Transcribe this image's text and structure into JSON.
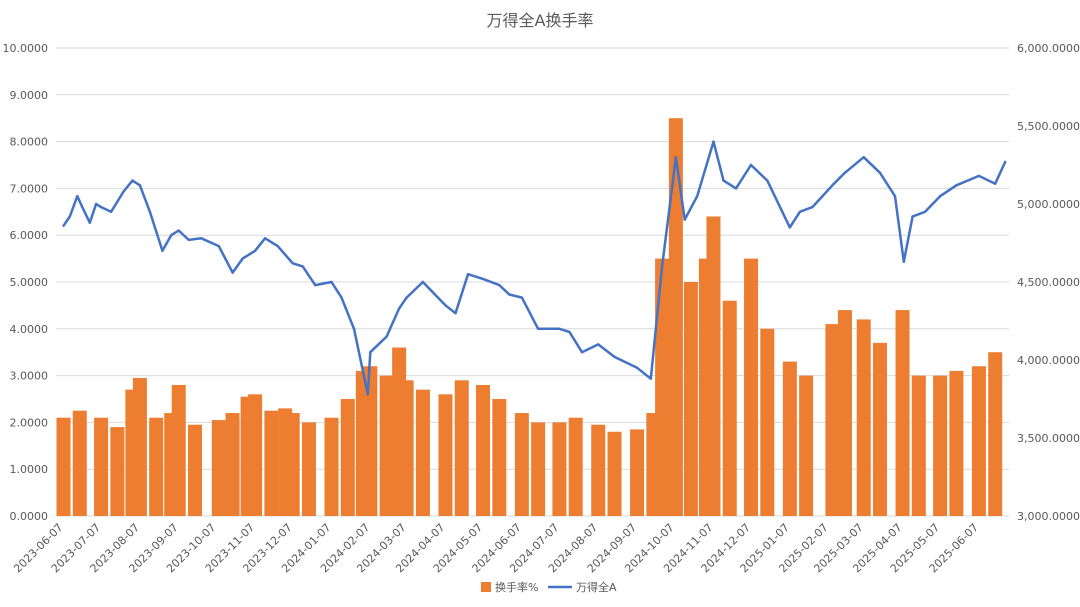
{
  "chart_data": {
    "type": "bar+line",
    "title": "万得全A换手率",
    "left_axis": {
      "min": 0,
      "max": 10,
      "step": 1,
      "tick_labels": [
        "0.0000",
        "1.0000",
        "2.0000",
        "3.0000",
        "4.0000",
        "5.0000",
        "6.0000",
        "7.0000",
        "8.0000",
        "9.0000",
        "10.0000"
      ]
    },
    "right_axis": {
      "min": 3000,
      "max": 6000,
      "step": 500,
      "tick_labels": [
        "3,000.0000",
        "3,500.0000",
        "4,000.0000",
        "4,500.0000",
        "5,000.0000",
        "5,500.0000",
        "6,000.0000"
      ]
    },
    "x_tick_labels": [
      "2023-06-07",
      "2023-07-07",
      "2023-08-07",
      "2023-09-07",
      "2023-10-07",
      "2023-11-07",
      "2023-12-07",
      "2024-01-07",
      "2024-02-07",
      "2024-03-07",
      "2024-04-07",
      "2024-05-07",
      "2024-06-07",
      "2024-07-07",
      "2024-08-07",
      "2024-09-07",
      "2024-10-07",
      "2024-11-07",
      "2024-12-07",
      "2025-01-07",
      "2025-02-07",
      "2025-03-07",
      "2025-04-07",
      "2025-05-07",
      "2025-06-07"
    ],
    "grid": true,
    "legend_position": "bottom",
    "series": [
      {
        "name": "换手率%",
        "type": "bar",
        "axis": "left",
        "color": "#ED7D31",
        "points": [
          [
            "2023-06-07",
            2.1
          ],
          [
            "2023-06-20",
            2.25
          ],
          [
            "2023-07-07",
            2.1
          ],
          [
            "2023-07-20",
            1.9
          ],
          [
            "2023-08-01",
            2.7
          ],
          [
            "2023-08-07",
            2.95
          ],
          [
            "2023-08-20",
            2.1
          ],
          [
            "2023-09-01",
            2.2
          ],
          [
            "2023-09-07",
            2.8
          ],
          [
            "2023-09-20",
            1.95
          ],
          [
            "2023-10-09",
            2.05
          ],
          [
            "2023-10-20",
            2.2
          ],
          [
            "2023-11-01",
            2.55
          ],
          [
            "2023-11-07",
            2.6
          ],
          [
            "2023-11-20",
            2.25
          ],
          [
            "2023-12-01",
            2.3
          ],
          [
            "2023-12-07",
            2.2
          ],
          [
            "2023-12-20",
            2.0
          ],
          [
            "2024-01-07",
            2.1
          ],
          [
            "2024-01-20",
            2.5
          ],
          [
            "2024-02-01",
            3.1
          ],
          [
            "2024-02-07",
            3.2
          ],
          [
            "2024-02-20",
            3.0
          ],
          [
            "2024-03-01",
            3.6
          ],
          [
            "2024-03-07",
            2.9
          ],
          [
            "2024-03-20",
            2.7
          ],
          [
            "2024-04-07",
            2.6
          ],
          [
            "2024-04-20",
            2.9
          ],
          [
            "2024-05-07",
            2.8
          ],
          [
            "2024-05-20",
            2.5
          ],
          [
            "2024-06-07",
            2.2
          ],
          [
            "2024-06-20",
            2.0
          ],
          [
            "2024-07-07",
            2.0
          ],
          [
            "2024-07-20",
            2.1
          ],
          [
            "2024-08-07",
            1.95
          ],
          [
            "2024-08-20",
            1.8
          ],
          [
            "2024-09-07",
            1.85
          ],
          [
            "2024-09-20",
            2.2
          ],
          [
            "2024-09-27",
            5.5
          ],
          [
            "2024-10-08",
            8.5
          ],
          [
            "2024-10-20",
            5.0
          ],
          [
            "2024-11-01",
            5.5
          ],
          [
            "2024-11-07",
            6.4
          ],
          [
            "2024-11-20",
            4.6
          ],
          [
            "2024-12-07",
            5.5
          ],
          [
            "2024-12-20",
            4.0
          ],
          [
            "2025-01-07",
            3.3
          ],
          [
            "2025-01-20",
            3.0
          ],
          [
            "2025-02-10",
            4.1
          ],
          [
            "2025-02-20",
            4.4
          ],
          [
            "2025-03-07",
            4.2
          ],
          [
            "2025-03-20",
            3.7
          ],
          [
            "2025-04-07",
            4.4
          ],
          [
            "2025-04-20",
            3.0
          ],
          [
            "2025-05-07",
            3.0
          ],
          [
            "2025-05-20",
            3.1
          ],
          [
            "2025-06-07",
            3.2
          ],
          [
            "2025-06-20",
            3.5
          ]
        ]
      },
      {
        "name": "万得全A",
        "type": "line",
        "axis": "right",
        "color": "#4472C4",
        "points": [
          [
            "2023-06-07",
            4860
          ],
          [
            "2023-06-12",
            4920
          ],
          [
            "2023-06-18",
            5050
          ],
          [
            "2023-06-22",
            4980
          ],
          [
            "2023-06-28",
            4880
          ],
          [
            "2023-07-03",
            5000
          ],
          [
            "2023-07-07",
            4980
          ],
          [
            "2023-07-15",
            4950
          ],
          [
            "2023-07-25",
            5080
          ],
          [
            "2023-08-01",
            5150
          ],
          [
            "2023-08-07",
            5120
          ],
          [
            "2023-08-15",
            4950
          ],
          [
            "2023-08-25",
            4700
          ],
          [
            "2023-09-01",
            4800
          ],
          [
            "2023-09-07",
            4830
          ],
          [
            "2023-09-15",
            4770
          ],
          [
            "2023-09-25",
            4780
          ],
          [
            "2023-10-09",
            4730
          ],
          [
            "2023-10-20",
            4560
          ],
          [
            "2023-10-28",
            4650
          ],
          [
            "2023-11-07",
            4700
          ],
          [
            "2023-11-15",
            4780
          ],
          [
            "2023-11-25",
            4730
          ],
          [
            "2023-12-07",
            4620
          ],
          [
            "2023-12-15",
            4600
          ],
          [
            "2023-12-25",
            4480
          ],
          [
            "2024-01-07",
            4500
          ],
          [
            "2024-01-15",
            4400
          ],
          [
            "2024-01-25",
            4200
          ],
          [
            "2024-02-05",
            3780
          ],
          [
            "2024-02-07",
            4050
          ],
          [
            "2024-02-20",
            4150
          ],
          [
            "2024-03-01",
            4330
          ],
          [
            "2024-03-07",
            4400
          ],
          [
            "2024-03-20",
            4500
          ],
          [
            "2024-04-01",
            4400
          ],
          [
            "2024-04-07",
            4350
          ],
          [
            "2024-04-15",
            4300
          ],
          [
            "2024-04-25",
            4550
          ],
          [
            "2024-05-07",
            4520
          ],
          [
            "2024-05-20",
            4480
          ],
          [
            "2024-05-28",
            4420
          ],
          [
            "2024-06-07",
            4400
          ],
          [
            "2024-06-20",
            4200
          ],
          [
            "2024-07-07",
            4200
          ],
          [
            "2024-07-15",
            4180
          ],
          [
            "2024-07-25",
            4050
          ],
          [
            "2024-08-07",
            4100
          ],
          [
            "2024-08-20",
            4020
          ],
          [
            "2024-09-07",
            3950
          ],
          [
            "2024-09-18",
            3880
          ],
          [
            "2024-09-27",
            4600
          ],
          [
            "2024-10-08",
            5300
          ],
          [
            "2024-10-15",
            4900
          ],
          [
            "2024-10-25",
            5050
          ],
          [
            "2024-11-07",
            5400
          ],
          [
            "2024-11-15",
            5150
          ],
          [
            "2024-11-25",
            5100
          ],
          [
            "2024-12-07",
            5250
          ],
          [
            "2024-12-20",
            5150
          ],
          [
            "2025-01-07",
            4850
          ],
          [
            "2025-01-15",
            4950
          ],
          [
            "2025-01-25",
            4980
          ],
          [
            "2025-02-10",
            5120
          ],
          [
            "2025-02-20",
            5200
          ],
          [
            "2025-03-07",
            5300
          ],
          [
            "2025-03-20",
            5200
          ],
          [
            "2025-04-01",
            5050
          ],
          [
            "2025-04-08",
            4630
          ],
          [
            "2025-04-15",
            4920
          ],
          [
            "2025-04-25",
            4950
          ],
          [
            "2025-05-07",
            5050
          ],
          [
            "2025-05-20",
            5120
          ],
          [
            "2025-06-07",
            5180
          ],
          [
            "2025-06-20",
            5130
          ],
          [
            "2025-06-28",
            5270
          ]
        ]
      }
    ]
  }
}
